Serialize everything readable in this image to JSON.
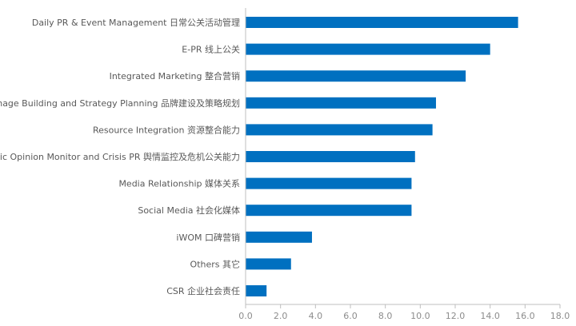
{
  "chart_data": {
    "type": "bar",
    "orientation": "horizontal",
    "categories": [
      "Daily PR & Event Management 日常公关活动管理",
      "E-PR 线上公关",
      "Integrated Marketing 整合营销",
      "Brand Image Building and Strategy Planning 品牌建设及策略规划",
      "Resource Integration 资源整合能力",
      "Public Opinion Monitor and Crisis PR 舆情监控及危机公关能力",
      "Media Relationship 媒体关系",
      "Social Media 社会化媒体",
      "iWOM 口碑营销",
      "Others 其它",
      "CSR 企业社会责任"
    ],
    "values": [
      15.6,
      14.0,
      12.6,
      10.9,
      10.7,
      9.7,
      9.5,
      9.5,
      3.8,
      2.6,
      1.2
    ],
    "xlim": [
      0,
      18
    ],
    "xticks": [
      "0.0",
      "2.0",
      "4.0",
      "6.0",
      "8.0",
      "10.0",
      "12.0",
      "14.0",
      "16.0",
      "18.0"
    ],
    "title": "",
    "xlabel": "",
    "ylabel": "",
    "grid": false,
    "bar_color": "#0070C0",
    "axis_color": "#bfbfbf"
  }
}
